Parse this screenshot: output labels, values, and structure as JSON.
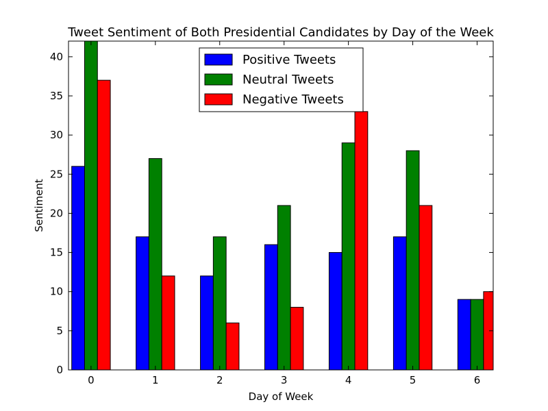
{
  "chart_data": {
    "type": "bar",
    "title": "Tweet Sentiment of Both Presidential Candidates by Day of the Week",
    "xlabel": "Day of Week",
    "ylabel": "Sentiment",
    "categories": [
      "0",
      "1",
      "2",
      "3",
      "4",
      "5",
      "6"
    ],
    "series": [
      {
        "name": "Positive Tweets",
        "color": "#0000ff",
        "values": [
          26,
          17,
          12,
          16,
          15,
          17,
          9
        ]
      },
      {
        "name": "Neutral Tweets",
        "color": "#008000",
        "values": [
          42,
          27,
          17,
          21,
          29,
          28,
          9
        ]
      },
      {
        "name": "Negative Tweets",
        "color": "#ff0000",
        "values": [
          37,
          12,
          6,
          8,
          33,
          21,
          10
        ]
      }
    ],
    "ylim": [
      0,
      42
    ],
    "yticks": [
      0,
      5,
      10,
      15,
      20,
      25,
      30,
      35,
      40
    ],
    "grid": false,
    "legend_position": "upper-center"
  }
}
